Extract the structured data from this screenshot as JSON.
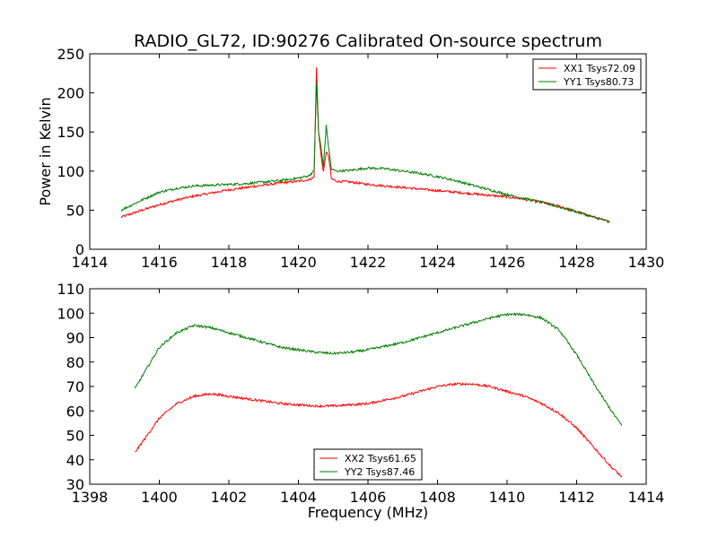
{
  "figure_title": "RADIO_GL72, ID:90276 Calibrated On-source spectrum",
  "chart_data": [
    {
      "type": "line",
      "ylabel": "Power in Kelvin",
      "xlabel": "",
      "xlim": [
        1414,
        1430
      ],
      "ylim": [
        0,
        250
      ],
      "xticks": [
        1414,
        1416,
        1418,
        1420,
        1422,
        1424,
        1426,
        1428,
        1430
      ],
      "yticks": [
        0,
        50,
        100,
        150,
        200,
        250
      ],
      "legend_position": "top-right",
      "series": [
        {
          "name": "XX1 Tsys72.09",
          "color": "#ff0000",
          "x": [
            1414.9,
            1415.5,
            1416,
            1416.5,
            1417,
            1417.5,
            1418,
            1418.5,
            1419,
            1419.5,
            1420,
            1420.3,
            1420.45,
            1420.52,
            1420.58,
            1420.65,
            1420.72,
            1420.8,
            1420.87,
            1420.95,
            1421.1,
            1421.5,
            1422,
            1422.5,
            1423,
            1423.5,
            1424,
            1424.5,
            1425,
            1425.5,
            1426,
            1426.5,
            1427,
            1427.5,
            1428,
            1428.5,
            1428.95
          ],
          "y": [
            41,
            50,
            57,
            63,
            68,
            72,
            76,
            79,
            82,
            85,
            87,
            89,
            92,
            233,
            150,
            120,
            98,
            125,
            118,
            90,
            87,
            86,
            83,
            81,
            79,
            77,
            75,
            73,
            71,
            69,
            67,
            64,
            60,
            55,
            48,
            41,
            35
          ]
        },
        {
          "name": "YY1 Tsys80.73",
          "color": "#007f00",
          "x": [
            1414.9,
            1415.5,
            1416,
            1416.5,
            1417,
            1417.5,
            1418,
            1418.5,
            1419,
            1419.5,
            1420,
            1420.3,
            1420.45,
            1420.52,
            1420.58,
            1420.65,
            1420.72,
            1420.8,
            1420.87,
            1420.95,
            1421.1,
            1421.5,
            1422,
            1422.5,
            1423,
            1423.5,
            1424,
            1424.5,
            1425,
            1425.5,
            1426,
            1426.5,
            1427,
            1427.5,
            1428,
            1428.5,
            1428.95
          ],
          "y": [
            50,
            63,
            73,
            78,
            81,
            82,
            83,
            84,
            86,
            88,
            91,
            94,
            100,
            212,
            150,
            130,
            106,
            158,
            130,
            102,
            100,
            101,
            104,
            103,
            100,
            97,
            93,
            88,
            82,
            76,
            70,
            65,
            60,
            54,
            48,
            41,
            35
          ]
        }
      ]
    },
    {
      "type": "line",
      "ylabel": "",
      "xlabel": "Frequency (MHz)",
      "xlim": [
        1398,
        1414
      ],
      "ylim": [
        30,
        110
      ],
      "xticks": [
        1398,
        1400,
        1402,
        1404,
        1406,
        1408,
        1410,
        1412,
        1414
      ],
      "yticks": [
        30,
        40,
        50,
        60,
        70,
        80,
        90,
        100,
        110
      ],
      "legend_position": "bottom-center",
      "series": [
        {
          "name": "XX2 Tsys61.65",
          "color": "#ff0000",
          "x": [
            1399.3,
            1399.5,
            1400,
            1400.5,
            1401,
            1401.5,
            1402,
            1402.5,
            1403,
            1403.5,
            1404,
            1404.5,
            1405,
            1405.5,
            1406,
            1406.5,
            1407,
            1407.5,
            1408,
            1408.5,
            1409,
            1409.5,
            1410,
            1410.5,
            1411,
            1411.5,
            1412,
            1412.5,
            1413,
            1413.3
          ],
          "y": [
            43,
            47,
            57,
            63,
            66,
            67,
            66,
            65,
            64,
            63,
            62.5,
            62,
            62,
            62.5,
            63,
            64.5,
            66,
            68,
            70,
            71,
            71,
            70,
            68,
            66,
            63,
            59,
            53,
            45,
            37,
            33
          ]
        },
        {
          "name": "YY2 Tsys87.46",
          "color": "#007f00",
          "x": [
            1399.3,
            1399.5,
            1400,
            1400.5,
            1401,
            1401.5,
            1402,
            1402.5,
            1403,
            1403.5,
            1404,
            1404.5,
            1405,
            1405.5,
            1406,
            1406.5,
            1407,
            1407.5,
            1408,
            1408.5,
            1409,
            1409.5,
            1410,
            1410.5,
            1411,
            1411.5,
            1412,
            1412.5,
            1413,
            1413.3
          ],
          "y": [
            69,
            74,
            86,
            92,
            95,
            94,
            92,
            90,
            88,
            86,
            85,
            84,
            83.5,
            84,
            85,
            86.5,
            88,
            90,
            92,
            94,
            96,
            98,
            99.5,
            99.5,
            98,
            93,
            83,
            71,
            60,
            54
          ]
        }
      ]
    }
  ]
}
